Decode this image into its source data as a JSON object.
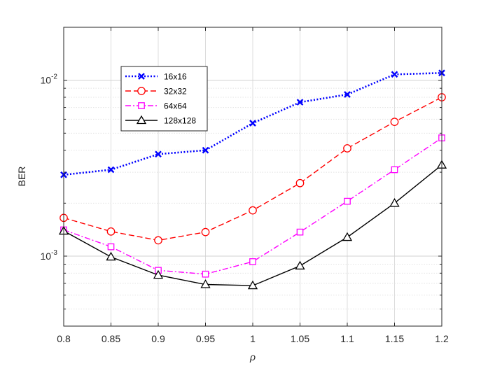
{
  "chart_data": {
    "type": "line",
    "title": "",
    "xlabel": "ρ",
    "ylabel": "BER",
    "yscale": "log",
    "xlim": [
      0.8,
      1.2
    ],
    "ylim": [
      0.0004,
      0.02
    ],
    "x": [
      0.8,
      0.85,
      0.9,
      0.95,
      1.0,
      1.05,
      1.1,
      1.15,
      1.2
    ],
    "x_tick_labels": [
      "0.8",
      "0.85",
      "0.9",
      "0.95",
      "1",
      "1.05",
      "1.1",
      "1.15",
      "1.2"
    ],
    "y_ticks": [
      {
        "value": 0.01,
        "base": "10",
        "exp": "-2"
      },
      {
        "value": 0.001,
        "base": "10",
        "exp": "-3"
      }
    ],
    "grid": true,
    "legend_position": "top-left",
    "series": [
      {
        "name": "16x16",
        "color": "#0000ff",
        "line_style": "dotted",
        "marker": "x",
        "values": [
          0.0029,
          0.0031,
          0.0038,
          0.004,
          0.0057,
          0.0075,
          0.0083,
          0.0108,
          0.011
        ]
      },
      {
        "name": "32x32",
        "color": "#ff0000",
        "line_style": "dashed",
        "marker": "circle",
        "values": [
          0.00165,
          0.00138,
          0.00123,
          0.00137,
          0.00182,
          0.0026,
          0.0041,
          0.0058,
          0.008
        ]
      },
      {
        "name": "64x64",
        "color": "#ff00ff",
        "line_style": "dash-dot",
        "marker": "square",
        "values": [
          0.00141,
          0.00113,
          0.00083,
          0.00079,
          0.00093,
          0.00137,
          0.00205,
          0.0031,
          0.0047
        ]
      },
      {
        "name": "128x128",
        "color": "#000000",
        "line_style": "solid",
        "marker": "triangle",
        "values": [
          0.00139,
          0.00099,
          0.00078,
          0.00069,
          0.00068,
          0.00088,
          0.00128,
          0.002,
          0.0033
        ]
      }
    ]
  }
}
